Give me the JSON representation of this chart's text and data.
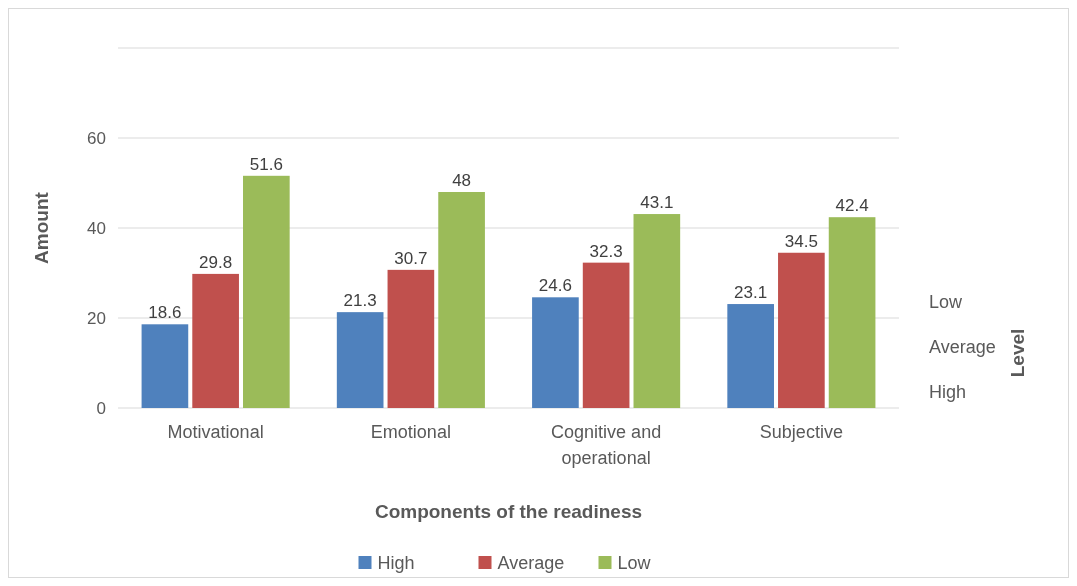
{
  "chart_data": {
    "type": "bar",
    "xlabel": "Components of the readiness",
    "ylabel": "Amount",
    "categories": [
      "Motivational",
      "Emotional",
      "Cognitive and operational",
      "Subjective"
    ],
    "series": [
      {
        "name": "High",
        "color": "#4f81bd",
        "values": [
          18.6,
          21.3,
          24.6,
          23.1
        ]
      },
      {
        "name": "Average",
        "color": "#c0504d",
        "values": [
          29.8,
          30.7,
          32.3,
          34.5
        ]
      },
      {
        "name": "Low",
        "color": "#9bbb59",
        "values": [
          51.6,
          48,
          43.1,
          42.4
        ]
      }
    ],
    "ylim": [
      0,
      80
    ],
    "yticks": [
      0,
      20,
      40,
      60,
      {
        "value": 80,
        "label": null
      }
    ],
    "grid": "y",
    "data_labels": true,
    "legend": "bottom",
    "annotations": [
      "Low",
      "Average",
      "High",
      "Level"
    ]
  }
}
